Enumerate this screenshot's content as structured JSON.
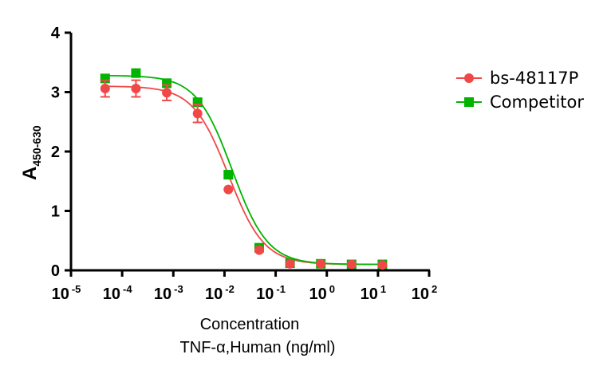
{
  "chart_data": {
    "type": "scatter",
    "title": "",
    "xlabel": "Concentration",
    "xlabel_line2": "TNF-α,Human  (ng/ml)",
    "ylabel": "A",
    "ylabel_subscript": "450-630",
    "xscale": "log",
    "xlim": [
      1e-05,
      100
    ],
    "ylim": [
      0,
      4
    ],
    "grid": false,
    "legend_position": "right",
    "x_ticks": [
      {
        "base": "10",
        "exp": "-5",
        "value": -5
      },
      {
        "base": "10",
        "exp": "-4",
        "value": -4
      },
      {
        "base": "10",
        "exp": "-3",
        "value": -3
      },
      {
        "base": "10",
        "exp": "-2",
        "value": -2
      },
      {
        "base": "10",
        "exp": "-1",
        "value": -1
      },
      {
        "base": "10",
        "exp": "0",
        "value": 0
      },
      {
        "base": "10",
        "exp": "1",
        "value": 1
      },
      {
        "base": "10",
        "exp": "2",
        "value": 2
      }
    ],
    "y_ticks": [
      "0",
      "1",
      "2",
      "3",
      "4"
    ],
    "x": [
      4.65e-05,
      0.000186,
      0.000745,
      0.00298,
      0.0119,
      0.0477,
      0.191,
      0.763,
      3.05,
      12.2
    ],
    "series": [
      {
        "name": "bs-48117P",
        "color": "#f04848",
        "marker": "circle",
        "values": [
          3.06,
          3.06,
          2.99,
          2.64,
          1.36,
          0.34,
          0.11,
          0.11,
          0.1,
          0.09
        ],
        "errors": [
          0.14,
          0.14,
          0.13,
          0.15,
          0.0,
          0.0,
          0.0,
          0.0,
          0.0,
          0.0
        ],
        "fit": {
          "top": 3.1,
          "bottom": 0.1,
          "log_ec50": -1.92,
          "hill": 1.25
        }
      },
      {
        "name": "Competitor",
        "color": "#00b400",
        "marker": "square",
        "values": [
          3.23,
          3.32,
          3.15,
          2.83,
          1.61,
          0.38,
          0.12,
          0.11,
          0.1,
          0.1
        ],
        "errors": [
          0,
          0,
          0,
          0,
          0,
          0,
          0,
          0,
          0,
          0
        ],
        "fit": {
          "top": 3.28,
          "bottom": 0.1,
          "log_ec50": -1.85,
          "hill": 1.25
        }
      }
    ]
  }
}
